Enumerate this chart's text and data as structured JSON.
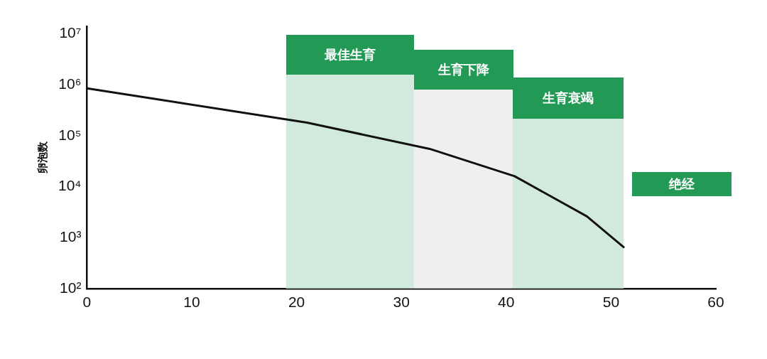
{
  "chart_data": {
    "type": "line",
    "ylabel": "卵泡数",
    "series": [
      {
        "color": "#111111",
        "x": [
          0,
          21,
          32.7,
          40.8,
          47.7,
          51.2
        ],
        "values": [
          850000,
          180000,
          55000,
          16000,
          2600,
          650
        ]
      }
    ],
    "xlim": [
      0,
      60
    ],
    "xticks": [
      0,
      10,
      20,
      30,
      40,
      50,
      60
    ],
    "ylim": [
      100,
      14000000
    ],
    "yticks": [
      {
        "value": 100,
        "label": "10²"
      },
      {
        "value": 1000,
        "label": "10³"
      },
      {
        "value": 10000,
        "label": "10⁴"
      },
      {
        "value": 100000,
        "label": "10⁵"
      },
      {
        "value": 1000000,
        "label": "10⁶"
      },
      {
        "value": 10000000,
        "label": "10⁷"
      }
    ],
    "log": "y",
    "grid": false,
    "legend": false,
    "marker": "none",
    "line_style": "solid",
    "bands": [
      {
        "axis": "x",
        "from": 19,
        "to": 31.2,
        "label": "最佳生育",
        "color": "#d2e9dd"
      },
      {
        "axis": "x",
        "from": 31.2,
        "to": 40.6,
        "label": "生育下降",
        "color": "#efefef"
      },
      {
        "axis": "x",
        "from": 40.6,
        "to": 51.2,
        "label": "生育衰竭",
        "color": "#d2e9dd"
      },
      {
        "axis": "x",
        "from": 52,
        "to": 60,
        "label": "绝经"
      }
    ]
  }
}
